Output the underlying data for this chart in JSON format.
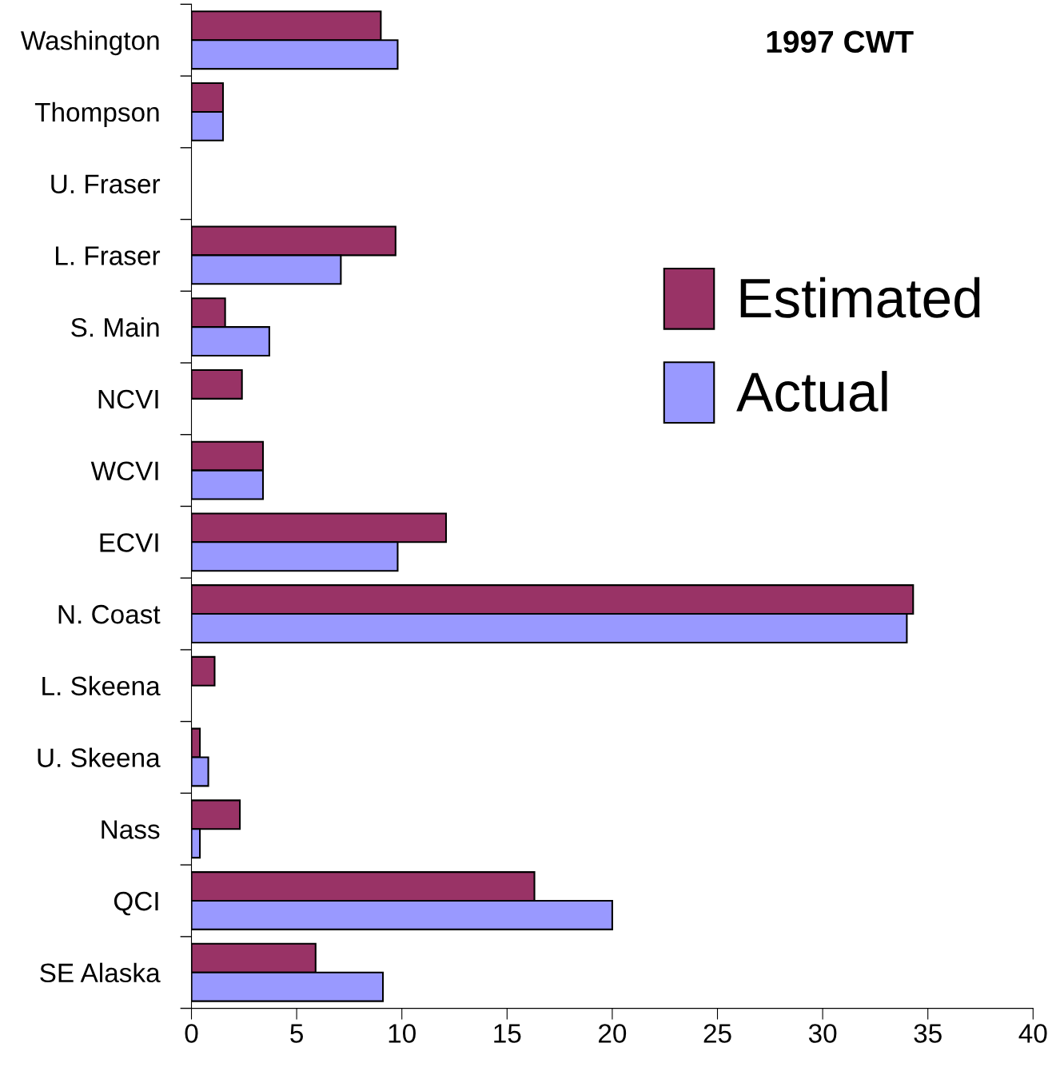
{
  "chart_data": {
    "type": "bar",
    "orientation": "horizontal",
    "title": "1997 CWT",
    "categories": [
      "Washington",
      "Thompson",
      "U. Fraser",
      "L. Fraser",
      "S. Main",
      "NCVI",
      "WCVI",
      "ECVI",
      "N. Coast",
      "L. Skeena",
      "U. Skeena",
      "Nass",
      "QCI",
      "SE Alaska"
    ],
    "series": [
      {
        "name": "Estimated",
        "color": "#993366",
        "values": [
          9.0,
          1.5,
          null,
          9.7,
          1.6,
          2.4,
          3.4,
          12.1,
          34.3,
          1.1,
          0.4,
          2.3,
          16.3,
          5.9
        ]
      },
      {
        "name": "Actual",
        "color": "#9999ff",
        "values": [
          9.8,
          1.5,
          null,
          7.1,
          3.7,
          null,
          3.4,
          9.8,
          34.0,
          null,
          0.8,
          0.4,
          20.0,
          9.1
        ]
      }
    ],
    "xlim": [
      0,
      40
    ],
    "xticks": [
      0,
      5,
      10,
      15,
      20,
      25,
      30,
      35,
      40
    ],
    "grid": false,
    "legend": "right"
  }
}
